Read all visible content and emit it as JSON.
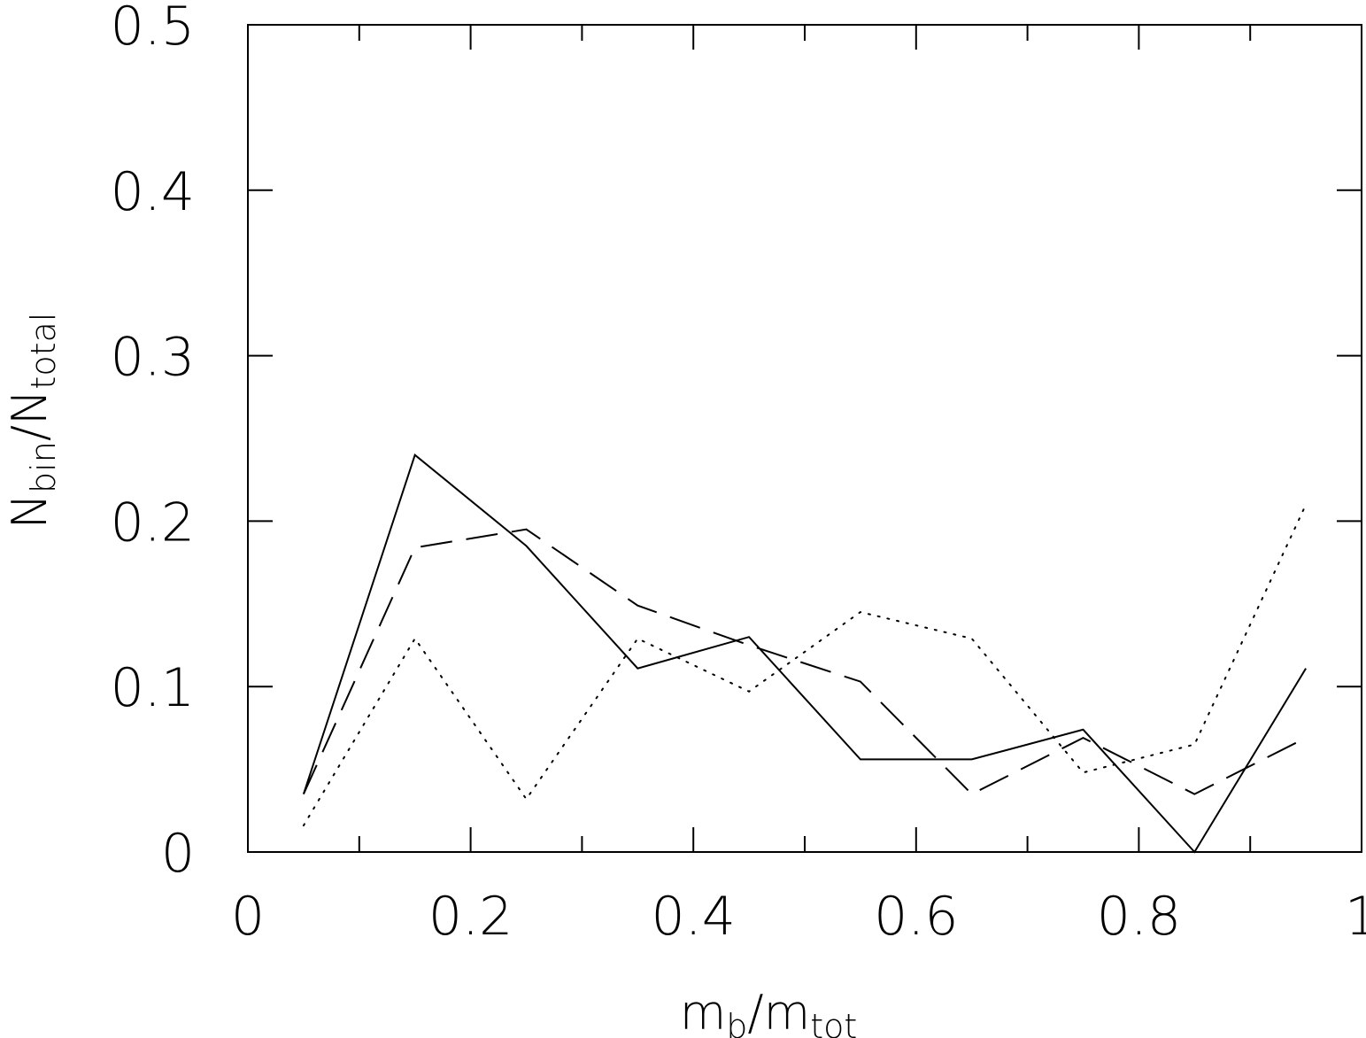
{
  "chart_data": {
    "type": "line",
    "xlabel": {
      "main": "m",
      "sub": "b",
      "slash": "/",
      "main2": "m",
      "sub2": "tot"
    },
    "ylabel": {
      "main": "N",
      "sub": "bin",
      "slash": "/",
      "main2": "N",
      "sub2": "total"
    },
    "xlim": [
      0,
      1
    ],
    "ylim": [
      0,
      0.5
    ],
    "xticks": [
      {
        "value": 0,
        "label": "0"
      },
      {
        "value": 0.2,
        "label": "0.2"
      },
      {
        "value": 0.4,
        "label": "0.4"
      },
      {
        "value": 0.6,
        "label": "0.6"
      },
      {
        "value": 0.8,
        "label": "0.8"
      },
      {
        "value": 1,
        "label": "1"
      }
    ],
    "yticks": [
      {
        "value": 0,
        "label": "0"
      },
      {
        "value": 0.1,
        "label": "0.1"
      },
      {
        "value": 0.2,
        "label": "0.2"
      },
      {
        "value": 0.3,
        "label": "0.3"
      },
      {
        "value": 0.4,
        "label": "0.4"
      },
      {
        "value": 0.5,
        "label": "0.5"
      }
    ],
    "x_minor_step": 0.1,
    "y_minor_step": 0.1,
    "grid": false,
    "legend": "none",
    "x": [
      0.05,
      0.15,
      0.25,
      0.35,
      0.45,
      0.55,
      0.65,
      0.75,
      0.85,
      0.95
    ],
    "series": [
      {
        "style": "solid",
        "values": [
          0.035,
          0.24,
          0.185,
          0.111,
          0.13,
          0.056,
          0.056,
          0.074,
          0.0,
          0.111
        ]
      },
      {
        "style": "dashed",
        "values": [
          0.035,
          0.184,
          0.195,
          0.149,
          0.125,
          0.103,
          0.035,
          0.069,
          0.035,
          0.069
        ]
      },
      {
        "style": "dotted",
        "values": [
          0.016,
          0.129,
          0.032,
          0.129,
          0.097,
          0.145,
          0.129,
          0.048,
          0.065,
          0.21
        ]
      }
    ]
  }
}
